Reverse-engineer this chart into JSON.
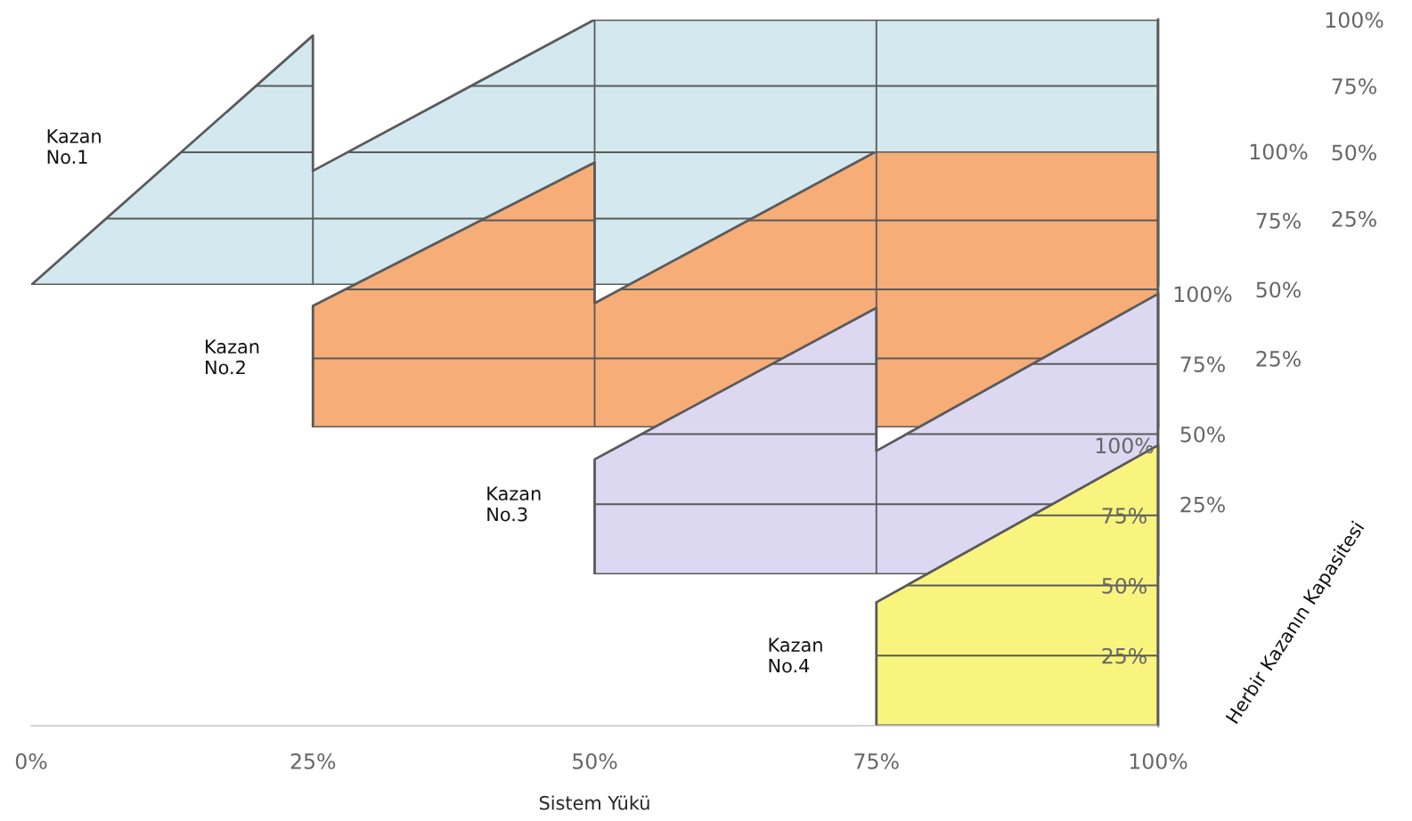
{
  "chart_data": [
    {
      "type": "area",
      "xlim": [
        0,
        100
      ],
      "xticks": [
        0,
        25,
        50,
        75,
        100
      ],
      "ylim": [
        0,
        100
      ],
      "yticks": [
        {
          "value": 25,
          "label": "25%"
        },
        {
          "value": 50,
          "label": "50%"
        },
        {
          "value": 75,
          "label": "75%"
        },
        {
          "value": 100,
          "label": "100%"
        }
      ],
      "tick_labels": "y",
      "grid": true,
      "x": [
        0,
        25,
        25,
        50,
        100
      ],
      "series": [
        {
          "name": "Kazan\nNo.1",
          "color": "#d3e8ef",
          "values": [
            0,
            94,
            43,
            100,
            100
          ]
        }
      ]
    },
    {
      "type": "area",
      "xlim": [
        0,
        100
      ],
      "xticks": [
        0,
        25,
        50,
        75,
        100
      ],
      "ylim": [
        0,
        100
      ],
      "yticks": [
        {
          "value": 25,
          "label": "25%"
        },
        {
          "value": 50,
          "label": "50%"
        },
        {
          "value": 75,
          "label": "75%"
        },
        {
          "value": 100,
          "label": "100%"
        }
      ],
      "tick_labels": "y",
      "grid": true,
      "x": [
        25,
        50,
        50,
        75,
        100
      ],
      "series": [
        {
          "name": "Kazan\nNo.2",
          "color": "#f6ad77",
          "values": [
            44,
            96,
            45,
            100,
            100
          ]
        }
      ]
    },
    {
      "type": "area",
      "xlim": [
        0,
        100
      ],
      "xticks": [
        0,
        25,
        50,
        75,
        100
      ],
      "ylim": [
        0,
        100
      ],
      "yticks": [
        {
          "value": 25,
          "label": "25%"
        },
        {
          "value": 50,
          "label": "50%"
        },
        {
          "value": 75,
          "label": "75%"
        },
        {
          "value": 100,
          "label": "100%"
        }
      ],
      "tick_labels": "y",
      "grid": true,
      "x": [
        50,
        75,
        75,
        100
      ],
      "series": [
        {
          "name": "Kazan\nNo.3",
          "color": "#dcd8f2",
          "values": [
            41,
            95,
            44,
            100
          ]
        }
      ]
    },
    {
      "type": "area",
      "xlim": [
        0,
        100
      ],
      "xticks": [
        {
          "value": 0,
          "label": "0%"
        },
        {
          "value": 25,
          "label": "25%"
        },
        {
          "value": 50,
          "label": "50%"
        },
        {
          "value": 75,
          "label": "75%"
        },
        {
          "value": 100,
          "label": "100%"
        }
      ],
      "ylim": [
        0,
        100
      ],
      "yticks": [
        {
          "value": 25,
          "label": "25%"
        },
        {
          "value": 50,
          "label": "50%"
        },
        {
          "value": 75,
          "label": "75%"
        },
        {
          "value": 100,
          "label": "100%"
        }
      ],
      "grid": true,
      "xlabel": "Sistem Yükü",
      "ylabel": "Herbir Kazanın Kapasitesi",
      "x": [
        75,
        100
      ],
      "series": [
        {
          "name": "Kazan\nNo.4",
          "color": "#f8f47e",
          "values": [
            44,
            100
          ]
        }
      ]
    }
  ]
}
